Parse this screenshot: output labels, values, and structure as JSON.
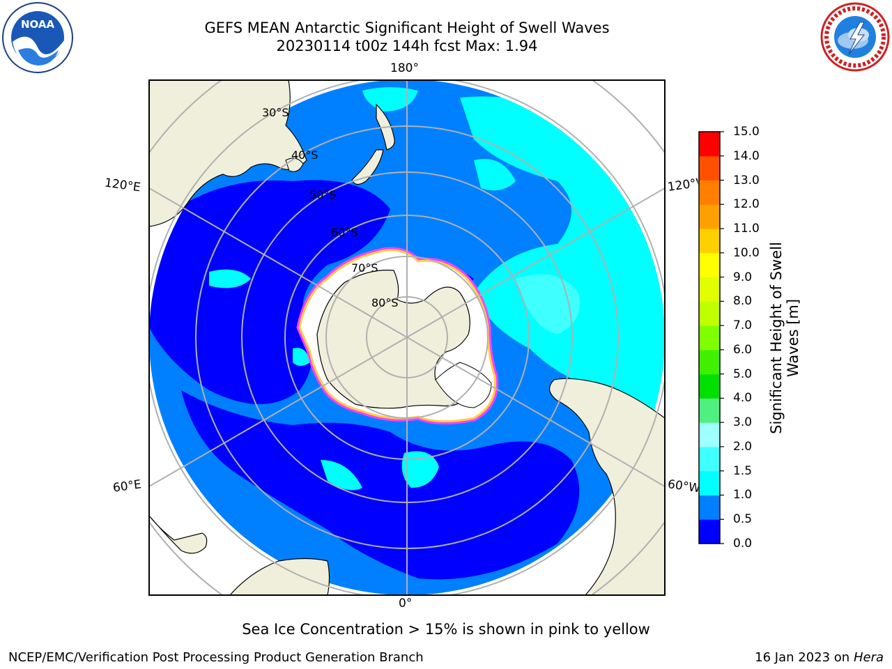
{
  "title": {
    "line1": "GEFS MEAN Antarctic Significant Height of Swell Waves",
    "line2": "20230114 t00z 144h fcst   Max: 1.94"
  },
  "logos": {
    "left": "noaa-logo",
    "right": "nws-logo",
    "noaa_text": "NOAA"
  },
  "map": {
    "projection": "south-polar-stereographic",
    "lon_labels": {
      "top": "180°",
      "bottom": "0°",
      "upper_left": "120°E",
      "lower_left": "60°E",
      "upper_right": "120°W",
      "lower_right": "60°W"
    },
    "lat_labels": [
      "30°S",
      "40°S",
      "50°S",
      "60°S",
      "70°S",
      "80°S"
    ],
    "colors": {
      "land": "#efefdc",
      "ocean_0": "#0000ff",
      "ocean_05": "#0080ff",
      "ocean_1": "#00ffff",
      "grid": "#b0b0b0",
      "ice_edge": "#ff40ff"
    }
  },
  "colorbar": {
    "label": "Significant Height of Swell Waves [m]",
    "ticks": [
      "0.0",
      "0.5",
      "1.0",
      "1.5",
      "2.0",
      "3.0",
      "4.0",
      "5.0",
      "6.0",
      "7.0",
      "8.0",
      "9.0",
      "10.0",
      "11.0",
      "12.0",
      "13.0",
      "14.0",
      "15.0"
    ],
    "colors": [
      "#0000ff",
      "#0080ff",
      "#00ffff",
      "#40ffff",
      "#a0ffff",
      "#50f080",
      "#00e000",
      "#40f000",
      "#80ff00",
      "#c0ff00",
      "#e0ff00",
      "#ffff00",
      "#ffd000",
      "#ffa000",
      "#ff8000",
      "#ff5000",
      "#ff0000"
    ]
  },
  "footnote": "Sea Ice Concentration > 15% is shown in pink to yellow",
  "footer": {
    "credit": "NCEP/EMC/Verification Post Processing Product Generation Branch",
    "date_prefix": "16 Jan 2023 on ",
    "machine": "Hera"
  }
}
